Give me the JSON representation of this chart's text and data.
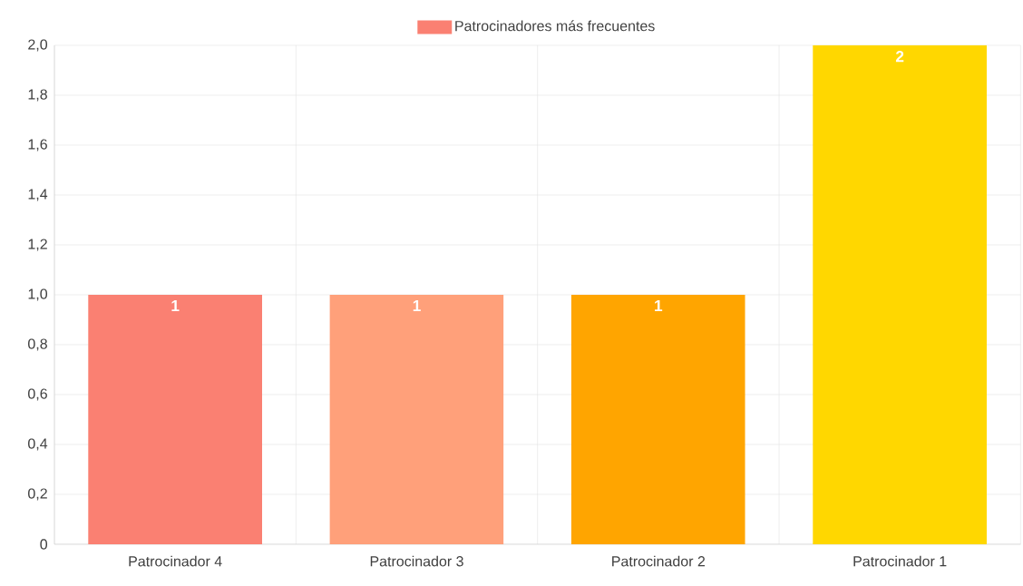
{
  "chart_data": {
    "type": "bar",
    "categories": [
      "Patrocinador 4",
      "Patrocinador 3",
      "Patrocinador 2",
      "Patrocinador 1"
    ],
    "series": [
      {
        "name": "Patrocinadores más frecuentes",
        "colors": [
          "#fa8072",
          "#ffa07a",
          "#ffa500",
          "#ffd700"
        ],
        "values": [
          1,
          1,
          1,
          2
        ]
      }
    ],
    "ylim": [
      0,
      2
    ],
    "yticks": [
      0,
      {
        "value": 0.2,
        "label": "0,2"
      },
      {
        "value": 0.4,
        "label": "0,4"
      },
      {
        "value": 0.6,
        "label": "0,6"
      },
      {
        "value": 0.8,
        "label": "0,8"
      },
      {
        "value": 1,
        "label": "1,0"
      },
      {
        "value": 1.2,
        "label": "1,2"
      },
      {
        "value": 1.4,
        "label": "1,4"
      },
      {
        "value": 1.6,
        "label": "1,6"
      },
      {
        "value": 1.8,
        "label": "1,8"
      },
      {
        "value": 2,
        "label": "2,0"
      }
    ],
    "grid": true,
    "legend": "top",
    "data_labels": true
  }
}
